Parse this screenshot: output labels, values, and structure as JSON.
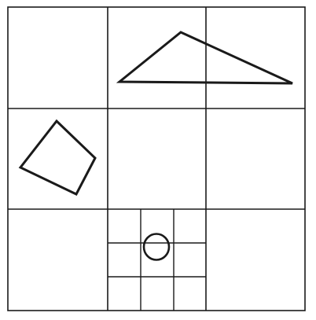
{
  "figure": {
    "grid": {
      "rows": 3,
      "columns": 3,
      "subdivided_cell": {
        "row": 3,
        "column": 2,
        "rows": 3,
        "columns": 3
      }
    },
    "shapes": [
      {
        "name": "triangle",
        "cell": {
          "row": 1,
          "columns": [
            2,
            3
          ]
        }
      },
      {
        "name": "quadrilateral",
        "cell": {
          "row": 2,
          "column": 1
        }
      },
      {
        "name": "circle",
        "cell": {
          "row": 3,
          "column": 2,
          "sub_row": 2,
          "sub_column": 2
        }
      }
    ],
    "colors": {
      "background": "#ffffff",
      "stroke": "#1a1a1a"
    }
  }
}
